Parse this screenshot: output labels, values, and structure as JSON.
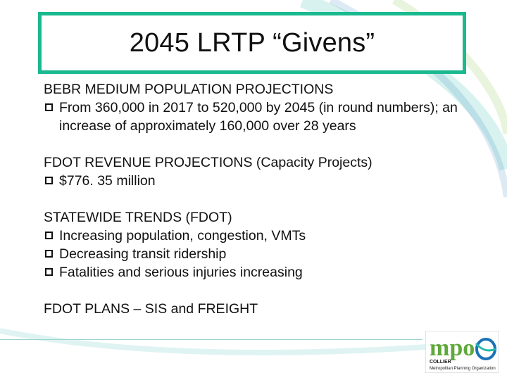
{
  "slide": {
    "title": "2045 LRTP “Givens”",
    "colors": {
      "title_border": "#1ab98f",
      "swoosh_teal": "#27b7a7",
      "swoosh_blue": "#1b73b7",
      "swoosh_green": "#7ec242"
    }
  },
  "sections": [
    {
      "heading": "BEBR MEDIUM POPULATION PROJECTIONS",
      "bullets": [
        "From 360,000 in 2017 to 520,000 by 2045 (in round numbers); an increase of approximately 160,000 over 28 years"
      ]
    },
    {
      "heading": "FDOT REVENUE PROJECTIONS (Capacity Projects)",
      "bullets": [
        "$776. 35 million"
      ]
    },
    {
      "heading": "STATEWIDE TRENDS (FDOT)",
      "bullets": [
        "Increasing population, congestion, VMTs",
        "Decreasing transit ridership",
        "Fatalities and serious injuries increasing"
      ]
    },
    {
      "heading": "FDOT PLANS – SIS and FREIGHT",
      "bullets": []
    }
  ],
  "logo": {
    "icon": "mpo-logo-icon",
    "letters": "mpo",
    "county": "COLLIER",
    "org": "Metropolitan Planning Organization"
  }
}
